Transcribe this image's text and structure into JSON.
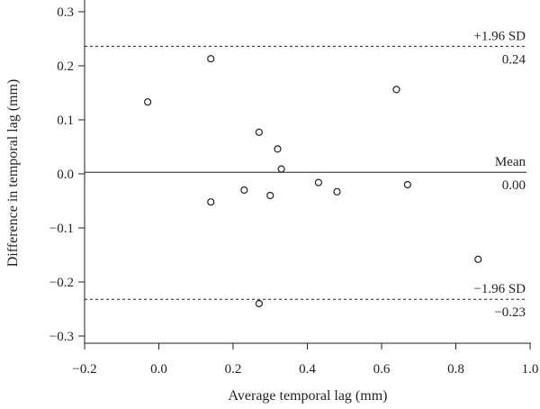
{
  "chart_data": {
    "type": "scatter",
    "title": "",
    "xlabel": "Average temporal lag (mm)",
    "ylabel": "Difference in temporal lag (mm)",
    "xlim": [
      -0.2,
      1.0
    ],
    "ylim": [
      -0.3,
      0.3
    ],
    "xticks": [
      "−0.2",
      "0.0",
      "0.2",
      "0.4",
      "0.6",
      "0.8",
      "1.0"
    ],
    "yticks": [
      "0.3",
      "0.2",
      "0.1",
      "0.0",
      "−0.1",
      "−0.2",
      "−0.3"
    ],
    "points": [
      {
        "x": -0.03,
        "y": 0.133
      },
      {
        "x": 0.14,
        "y": 0.213
      },
      {
        "x": 0.14,
        "y": -0.052
      },
      {
        "x": 0.23,
        "y": -0.03
      },
      {
        "x": 0.27,
        "y": 0.077
      },
      {
        "x": 0.27,
        "y": -0.24
      },
      {
        "x": 0.3,
        "y": -0.04
      },
      {
        "x": 0.32,
        "y": 0.046
      },
      {
        "x": 0.33,
        "y": 0.009
      },
      {
        "x": 0.43,
        "y": -0.016
      },
      {
        "x": 0.48,
        "y": -0.033
      },
      {
        "x": 0.64,
        "y": 0.156
      },
      {
        "x": 0.67,
        "y": -0.02
      },
      {
        "x": 0.86,
        "y": -0.158
      }
    ],
    "reference_lines": {
      "upper": {
        "y": 0.236,
        "label": "+1.96 SD",
        "value_label": "0.24"
      },
      "mean": {
        "y": 0.003,
        "label": "Mean",
        "value_label": "0.00"
      },
      "lower": {
        "y": -0.232,
        "label": "−1.96 SD",
        "value_label": "−0.23"
      }
    },
    "grid": false,
    "legend": "none"
  }
}
